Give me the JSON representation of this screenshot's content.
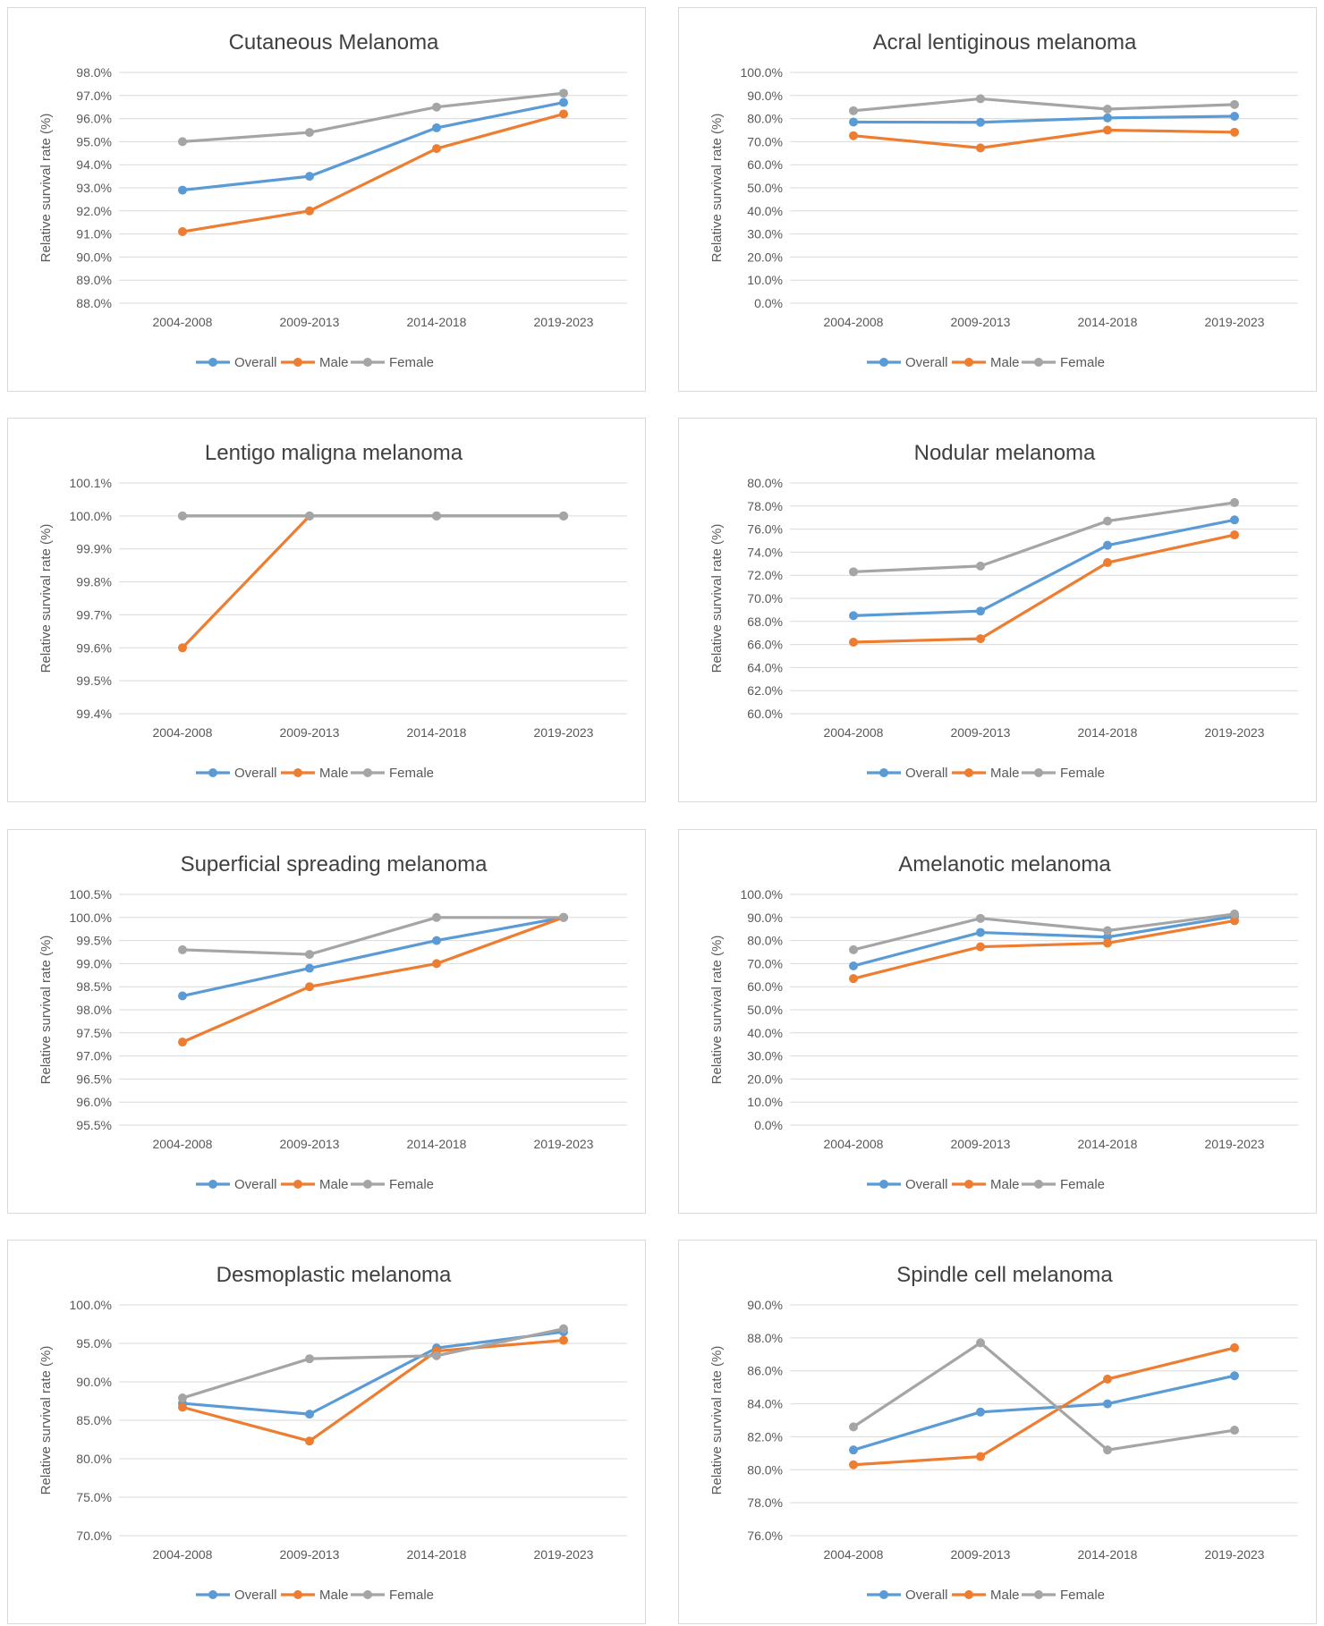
{
  "colors": {
    "overall": "#5B9BD5",
    "male": "#ED7D31",
    "female": "#A5A5A5"
  },
  "chart_data": [
    {
      "type": "line",
      "title": "Cutaneous Melanoma",
      "ylabel": "Relative survival rate (%)",
      "categories": [
        "2004-2008",
        "2009-2013",
        "2014-2018",
        "2019-2023"
      ],
      "yticks": [
        "88.0%",
        "89.0%",
        "90.0%",
        "91.0%",
        "92.0%",
        "93.0%",
        "94.0%",
        "95.0%",
        "96.0%",
        "97.0%",
        "98.0%"
      ],
      "ylim": [
        88,
        98
      ],
      "series": [
        {
          "name": "Overall",
          "values": [
            92.9,
            93.5,
            95.6,
            96.7
          ]
        },
        {
          "name": "Male",
          "values": [
            91.1,
            92.0,
            94.7,
            96.2
          ]
        },
        {
          "name": "Female",
          "values": [
            95.0,
            95.4,
            96.5,
            97.1
          ]
        }
      ]
    },
    {
      "type": "line",
      "title": "Acral lentiginous melanoma",
      "ylabel": "Relative survival rate (%)",
      "categories": [
        "2004-2008",
        "2009-2013",
        "2014-2018",
        "2019-2023"
      ],
      "yticks": [
        "0.0%",
        "10.0%",
        "20.0%",
        "30.0%",
        "40.0%",
        "50.0%",
        "60.0%",
        "70.0%",
        "80.0%",
        "90.0%",
        "100.0%"
      ],
      "ylim": [
        0,
        100
      ],
      "series": [
        {
          "name": "Overall",
          "values": [
            78.5,
            78.4,
            80.3,
            81.0
          ]
        },
        {
          "name": "Male",
          "values": [
            72.6,
            67.3,
            75.0,
            74.1
          ]
        },
        {
          "name": "Female",
          "values": [
            83.4,
            88.6,
            84.1,
            86.1
          ]
        }
      ]
    },
    {
      "type": "line",
      "title": "Lentigo maligna melanoma",
      "ylabel": "Relative survival rate (%)",
      "categories": [
        "2004-2008",
        "2009-2013",
        "2014-2018",
        "2019-2023"
      ],
      "yticks": [
        "99.4%",
        "99.5%",
        "99.6%",
        "99.7%",
        "99.8%",
        "99.9%",
        "100.0%",
        "100.1%"
      ],
      "ylim": [
        99.4,
        100.1
      ],
      "series": [
        {
          "name": "Overall",
          "values": [
            100.0,
            100.0,
            100.0,
            100.0
          ]
        },
        {
          "name": "Male",
          "values": [
            99.6,
            100.0,
            100.0,
            100.0
          ]
        },
        {
          "name": "Female",
          "values": [
            100.0,
            100.0,
            100.0,
            100.0
          ]
        }
      ]
    },
    {
      "type": "line",
      "title": "Nodular melanoma",
      "ylabel": "Relative survival rate (%)",
      "categories": [
        "2004-2008",
        "2009-2013",
        "2014-2018",
        "2019-2023"
      ],
      "yticks": [
        "60.0%",
        "62.0%",
        "64.0%",
        "66.0%",
        "68.0%",
        "70.0%",
        "72.0%",
        "74.0%",
        "76.0%",
        "78.0%",
        "80.0%"
      ],
      "ylim": [
        60,
        80
      ],
      "series": [
        {
          "name": "Overall",
          "values": [
            68.5,
            68.9,
            74.6,
            76.8
          ]
        },
        {
          "name": "Male",
          "values": [
            66.2,
            66.5,
            73.1,
            75.5
          ]
        },
        {
          "name": "Female",
          "values": [
            72.3,
            72.8,
            76.7,
            78.3
          ]
        }
      ]
    },
    {
      "type": "line",
      "title": "Superficial spreading melanoma",
      "ylabel": "Relative survival rate (%)",
      "categories": [
        "2004-2008",
        "2009-2013",
        "2014-2018",
        "2019-2023"
      ],
      "yticks": [
        "95.5%",
        "96.0%",
        "96.5%",
        "97.0%",
        "97.5%",
        "98.0%",
        "98.5%",
        "99.0%",
        "99.5%",
        "100.0%",
        "100.5%"
      ],
      "ylim": [
        95.5,
        100.5
      ],
      "series": [
        {
          "name": "Overall",
          "values": [
            98.3,
            98.9,
            99.5,
            100.0
          ]
        },
        {
          "name": "Male",
          "values": [
            97.3,
            98.5,
            99.0,
            100.0
          ]
        },
        {
          "name": "Female",
          "values": [
            99.3,
            99.2,
            100.0,
            100.0
          ]
        }
      ]
    },
    {
      "type": "line",
      "title": "Amelanotic melanoma",
      "ylabel": "Relative survival rate (%)",
      "categories": [
        "2004-2008",
        "2009-2013",
        "2014-2018",
        "2019-2023"
      ],
      "yticks": [
        "0.0%",
        "10.0%",
        "20.0%",
        "30.0%",
        "40.0%",
        "50.0%",
        "60.0%",
        "70.0%",
        "80.0%",
        "90.0%",
        "100.0%"
      ],
      "ylim": [
        0,
        100
      ],
      "series": [
        {
          "name": "Overall",
          "values": [
            69.0,
            83.5,
            81.5,
            90.5
          ]
        },
        {
          "name": "Male",
          "values": [
            63.5,
            77.3,
            78.9,
            88.6
          ]
        },
        {
          "name": "Female",
          "values": [
            76.0,
            89.6,
            84.3,
            91.5
          ]
        }
      ]
    },
    {
      "type": "line",
      "title": "Desmoplastic melanoma",
      "ylabel": "Relative survival rate (%)",
      "categories": [
        "2004-2008",
        "2009-2013",
        "2014-2018",
        "2019-2023"
      ],
      "yticks": [
        "70.0%",
        "75.0%",
        "80.0%",
        "85.0%",
        "90.0%",
        "95.0%",
        "100.0%"
      ],
      "ylim": [
        70,
        100
      ],
      "series": [
        {
          "name": "Overall",
          "values": [
            87.2,
            85.8,
            94.4,
            96.5
          ]
        },
        {
          "name": "Male",
          "values": [
            86.7,
            82.3,
            94.0,
            95.4
          ]
        },
        {
          "name": "Female",
          "values": [
            87.9,
            93.0,
            93.4,
            96.9
          ]
        }
      ]
    },
    {
      "type": "line",
      "title": "Spindle cell melanoma",
      "ylabel": "Relative survival rate (%)",
      "categories": [
        "2004-2008",
        "2009-2013",
        "2014-2018",
        "2019-2023"
      ],
      "yticks": [
        "76.0%",
        "78.0%",
        "80.0%",
        "82.0%",
        "84.0%",
        "86.0%",
        "88.0%",
        "90.0%"
      ],
      "ylim": [
        76,
        90
      ],
      "series": [
        {
          "name": "Overall",
          "values": [
            81.2,
            83.5,
            84.0,
            85.7
          ]
        },
        {
          "name": "Male",
          "values": [
            80.3,
            80.8,
            85.5,
            87.4
          ]
        },
        {
          "name": "Female",
          "values": [
            82.6,
            87.7,
            81.2,
            82.4
          ]
        }
      ]
    }
  ]
}
